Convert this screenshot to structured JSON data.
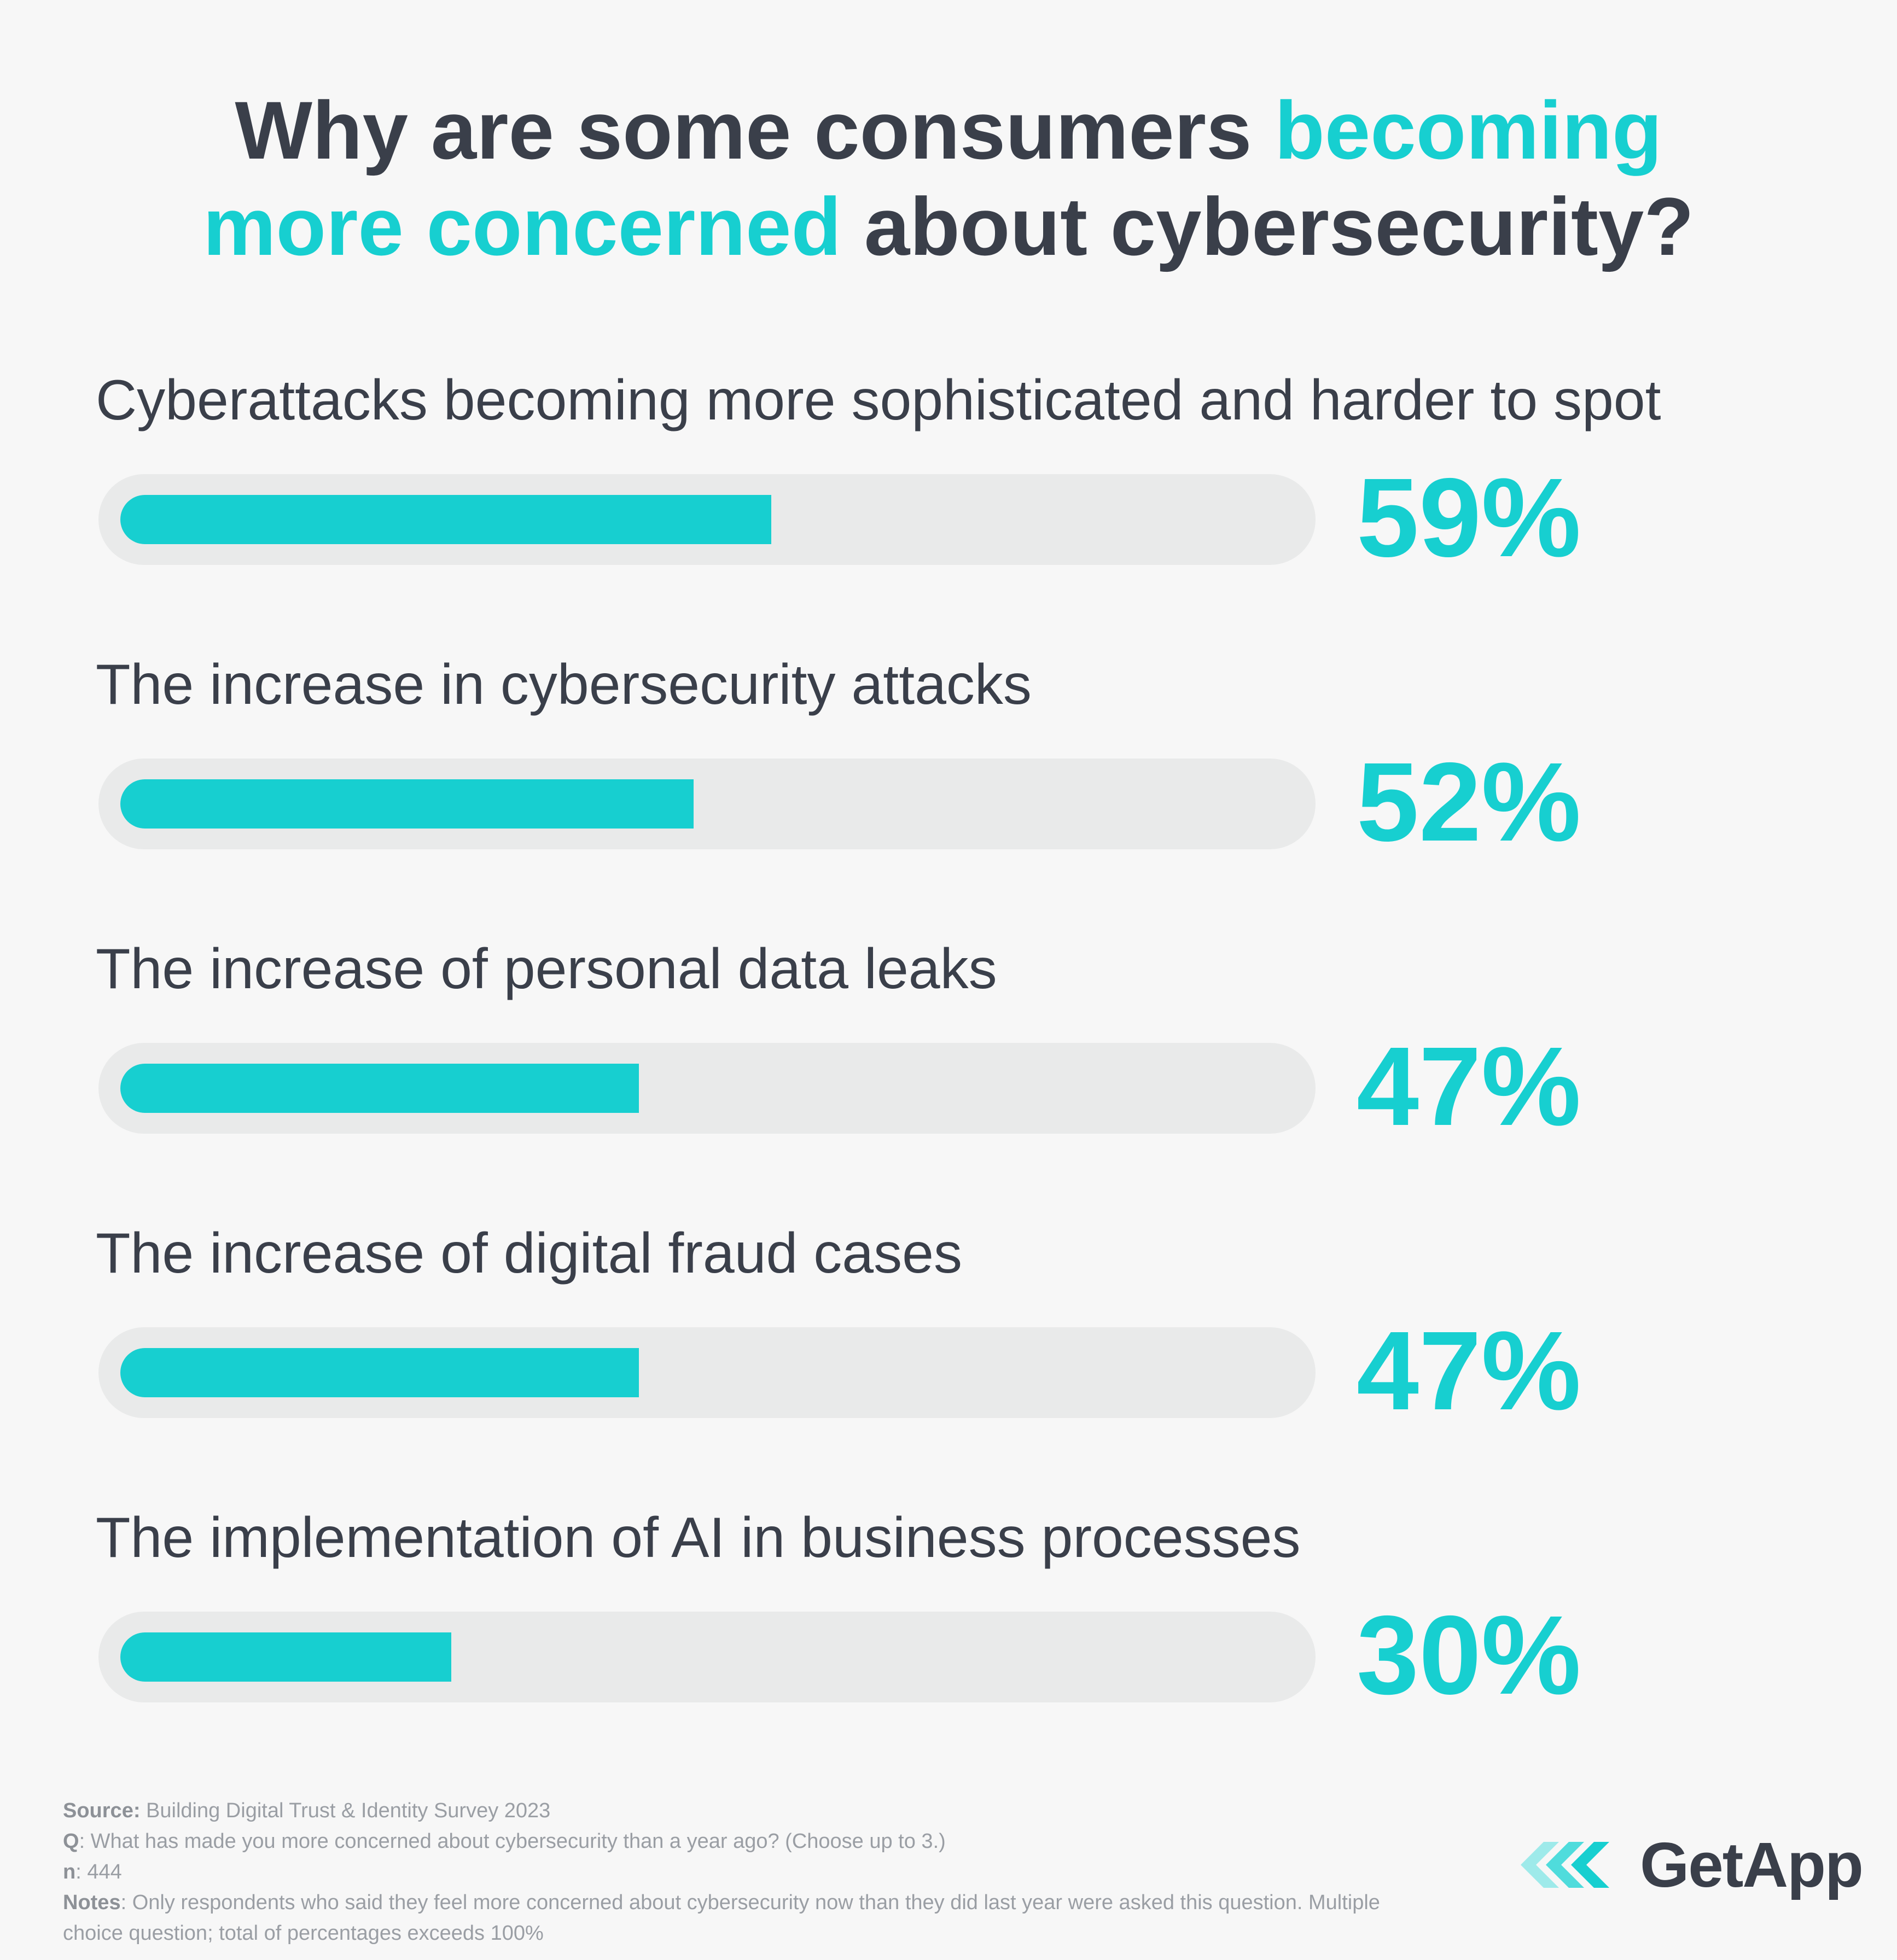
{
  "title": {
    "part1": "Why are some consumers ",
    "part2_highlight": "becoming",
    "part3_highlight": "more concerned",
    "part4": " about cybersecurity?"
  },
  "chart_data": {
    "type": "bar",
    "orientation": "horizontal",
    "categories": [
      "Cyberattacks becoming more sophisticated and harder to spot",
      "The increase in cybersecurity attacks",
      "The increase of personal data leaks",
      "The increase of digital fraud cases",
      "The implementation of AI in business processes"
    ],
    "values": [
      59,
      52,
      47,
      47,
      30
    ],
    "value_labels": [
      "59%",
      "52%",
      "47%",
      "47%",
      "30%"
    ],
    "xlim": [
      0,
      100
    ],
    "unit": "%",
    "grid": false,
    "legend": "none"
  },
  "colors": {
    "accent": "#17cfd0",
    "text": "#3a3f4a",
    "track": "#e9eaea",
    "background": "#f7f7f7"
  },
  "footnotes": {
    "source_label": "Source:",
    "source_text": " Building Digital Trust & Identity Survey 2023",
    "q_label": "Q",
    "q_text": ": What has made you more concerned about cybersecurity than a year ago? (Choose up to 3.)",
    "n_label": "n",
    "n_text": ": 444",
    "notes_label": "Notes",
    "notes_text": ": Only respondents who said they feel more concerned about cybersecurity now than they did last year were asked this question. Multiple choice question; total of percentages exceeds 100%"
  },
  "brand": {
    "name": "GetApp",
    "icon": "getapp-chevrons-icon"
  }
}
